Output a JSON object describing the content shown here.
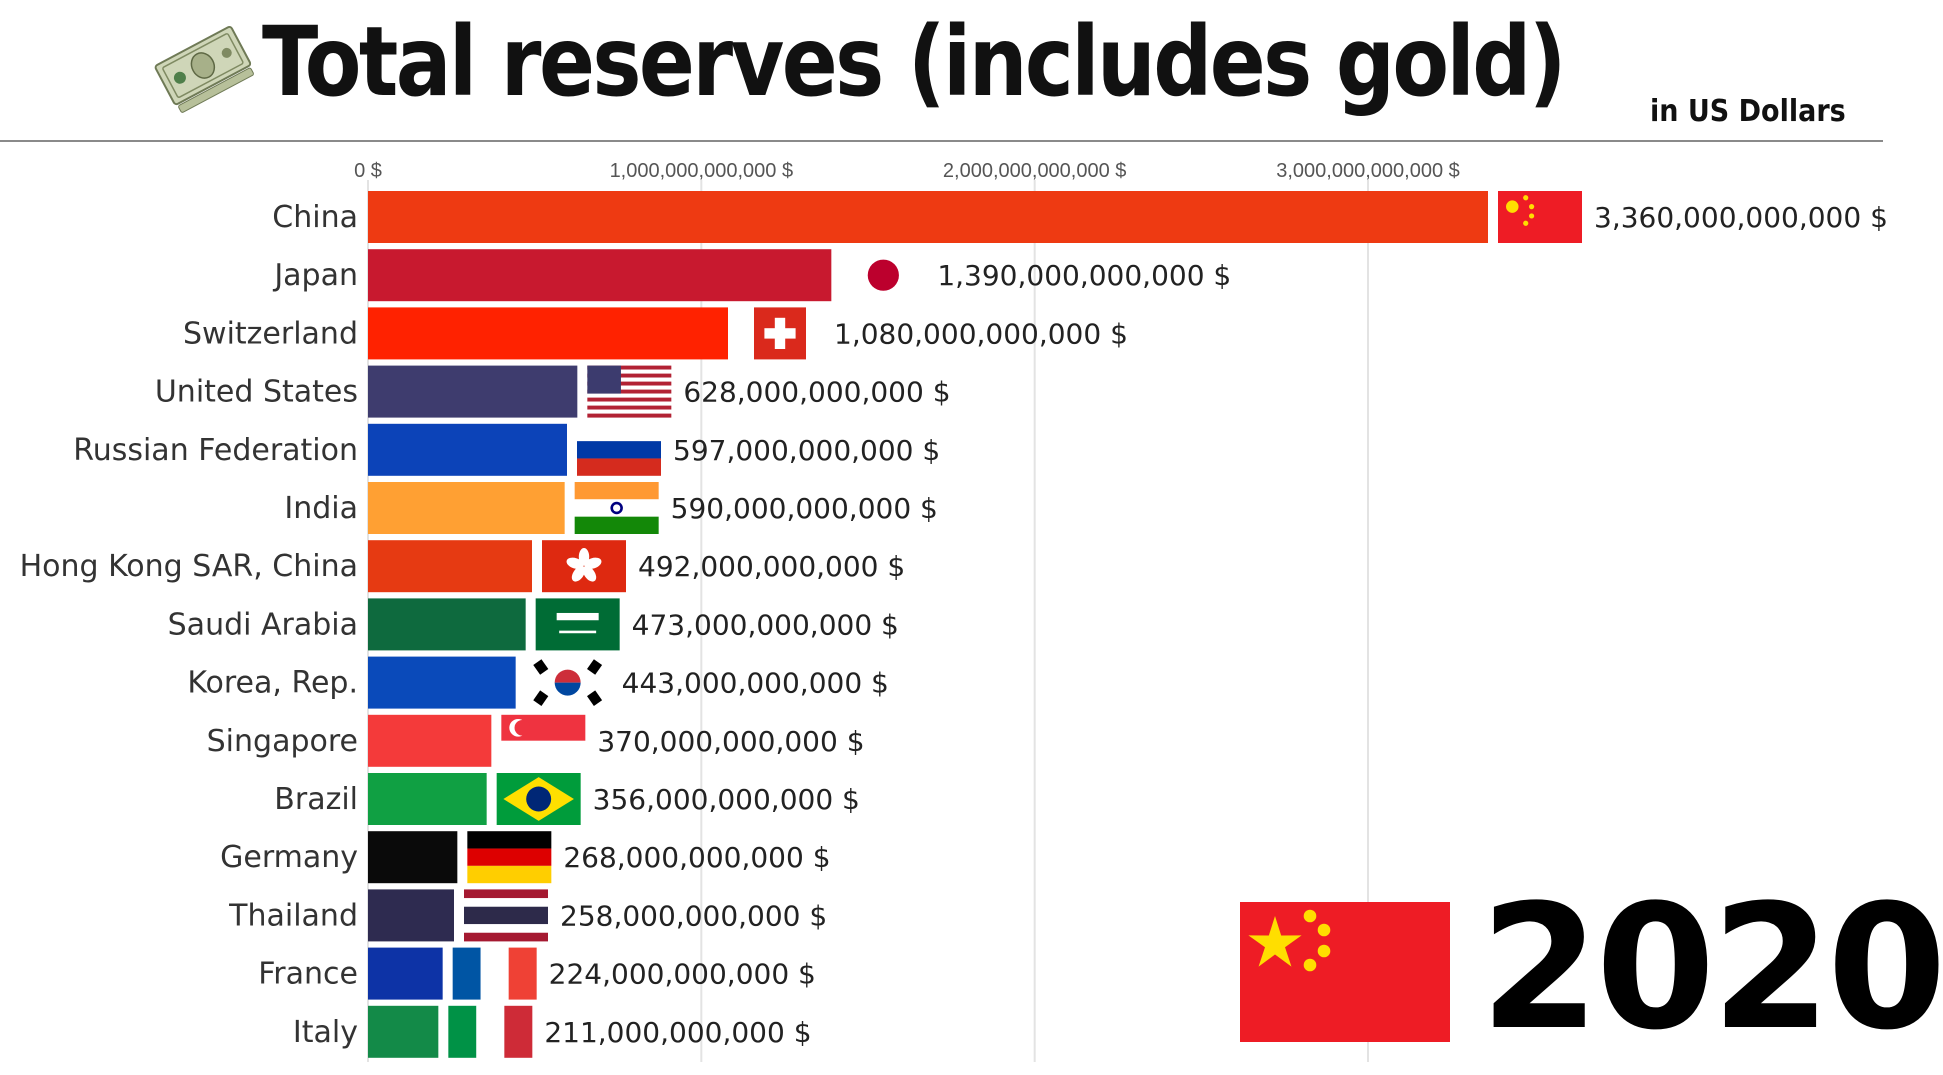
{
  "header": {
    "title": "Total reserves (includes gold)",
    "subtitle": "in US Dollars",
    "icon": "dollar-bill-icon"
  },
  "year": "2020",
  "leader_flag": "china-flag-icon",
  "colors": {
    "gridline": "#e3e3e3",
    "rule": "#8a8a8a"
  },
  "chart_data": {
    "type": "bar",
    "orientation": "horizontal",
    "xlim": [
      0,
      3360000000000
    ],
    "x_ticks": [
      0,
      1000000000000,
      2000000000000,
      3000000000000
    ],
    "x_tick_labels": [
      "0 $",
      "1,000,000,000,000 $",
      "2,000,000,000,000 $",
      "3,000,000,000,000 $"
    ],
    "grid": true,
    "categories": [
      "China",
      "Japan",
      "Switzerland",
      "United States",
      "Russian Federation",
      "India",
      "Hong Kong SAR, China",
      "Saudi Arabia",
      "Korea, Rep.",
      "Singapore",
      "Brazil",
      "Germany",
      "Thailand",
      "France",
      "Italy"
    ],
    "values": [
      3360000000000,
      1390000000000,
      1080000000000,
      628000000000,
      597000000000,
      590000000000,
      492000000000,
      473000000000,
      443000000000,
      370000000000,
      356000000000,
      268000000000,
      258000000000,
      224000000000,
      211000000000
    ],
    "value_labels": [
      "3,360,000,000,000 $",
      "1,390,000,000,000 $",
      "1,080,000,000,000 $",
      "628,000,000,000 $",
      "597,000,000,000 $",
      "590,000,000,000 $",
      "492,000,000,000 $",
      "473,000,000,000 $",
      "443,000,000,000 $",
      "370,000,000,000 $",
      "356,000,000,000 $",
      "268,000,000,000 $",
      "258,000,000,000 $",
      "224,000,000,000 $",
      "211,000,000,000 $"
    ],
    "bar_colors": [
      "#ee3a12",
      "#c8192f",
      "#ff2200",
      "#3e3c6e",
      "#0c43b8",
      "#ffa033",
      "#e63a12",
      "#0e6a3e",
      "#0a4aba",
      "#f43a3a",
      "#10a043",
      "#0a0a0a",
      "#2e2b50",
      "#0d33a6",
      "#138a48"
    ],
    "flags": [
      "china-flag-icon",
      "japan-flag-icon",
      "switzerland-flag-icon",
      "usa-flag-icon",
      "russia-flag-icon",
      "india-flag-icon",
      "hong-kong-flag-icon",
      "saudi-arabia-flag-icon",
      "south-korea-flag-icon",
      "singapore-flag-icon",
      "brazil-flag-icon",
      "germany-flag-icon",
      "thailand-flag-icon",
      "france-flag-icon",
      "italy-flag-icon"
    ]
  }
}
